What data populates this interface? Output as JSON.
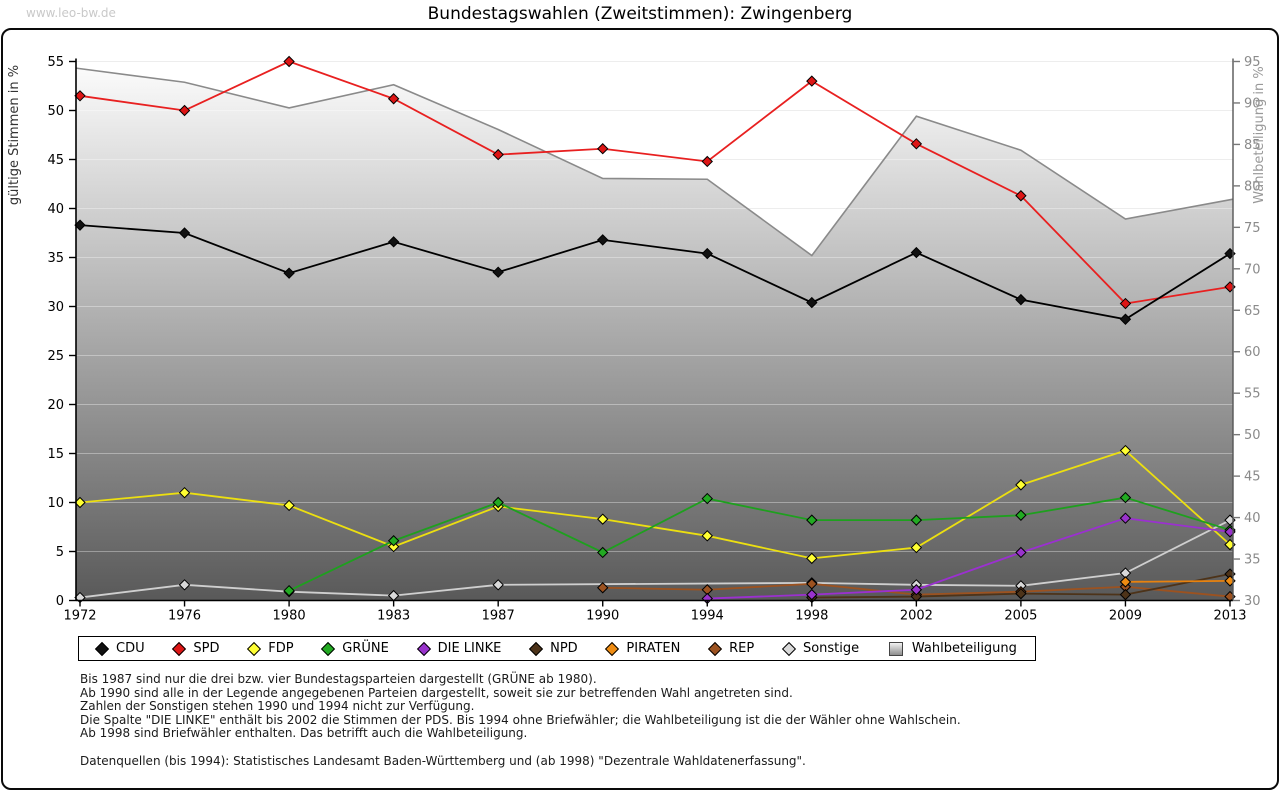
{
  "watermark": "www.leo-bw.de",
  "title": "Bundestagswahlen (Zweitstimmen): Zwingenberg",
  "footnotes": [
    "Bis 1987 sind nur die drei bzw. vier Bundestagsparteien dargestellt (GRÜNE ab 1980).",
    "Ab 1990 sind alle in der Legende angegebenen Parteien dargestellt, soweit sie zur betreffenden Wahl angetreten sind.",
    "Zahlen der Sonstigen stehen 1990 und 1994 nicht zur Verfügung.",
    "Die Spalte \"DIE LINKE\" enthält bis 2002 die Stimmen der PDS. Bis 1994 ohne Briefwähler; die Wahlbeteiligung ist die der Wähler ohne Wahlschein.",
    "Ab 1998 sind Briefwähler enthalten. Das betrifft auch die Wahlbeteiligung.",
    "Datenquellen (bis 1994): Statistisches Landesamt Baden-Württemberg und (ab 1998) \"Dezentrale Wahldatenerfassung\"."
  ],
  "chart_data": {
    "type": "line",
    "x": [
      1972,
      1976,
      1980,
      1983,
      1987,
      1990,
      1994,
      1998,
      2002,
      2005,
      2009,
      2013
    ],
    "left_axis": {
      "label": "gültige Stimmen in %",
      "min": 0,
      "max": 55,
      "step": 5
    },
    "right_axis": {
      "label": "Wahlbeteiligung in %",
      "min": 30,
      "max": 95,
      "step": 5
    },
    "grid": true,
    "legend_position": "bottom",
    "series": [
      {
        "name": "CDU",
        "axis": "left",
        "kind": "line",
        "color": "#000000",
        "marker_fill": "#111111",
        "values": [
          38.3,
          37.5,
          33.4,
          36.6,
          33.5,
          36.8,
          35.4,
          30.4,
          35.5,
          30.7,
          28.7,
          35.4
        ]
      },
      {
        "name": "SPD",
        "axis": "left",
        "kind": "line",
        "color": "#e82020",
        "marker_fill": "#dd1515",
        "values": [
          51.5,
          50.0,
          55.0,
          51.2,
          45.5,
          46.1,
          44.8,
          53.0,
          46.6,
          41.3,
          30.3,
          32.0
        ]
      },
      {
        "name": "FDP",
        "axis": "left",
        "kind": "line",
        "color": "#ecdf10",
        "marker_fill": "#ffff33",
        "values": [
          10.0,
          11.0,
          9.7,
          5.5,
          9.6,
          8.3,
          6.6,
          4.3,
          5.4,
          11.8,
          15.3,
          5.7
        ]
      },
      {
        "name": "GRÜNE",
        "axis": "left",
        "kind": "line",
        "color": "#1ea01e",
        "marker_fill": "#22aa22",
        "values": [
          null,
          null,
          1.0,
          6.1,
          10.0,
          4.9,
          10.4,
          8.2,
          8.2,
          8.7,
          10.5,
          7.2
        ]
      },
      {
        "name": "DIE LINKE",
        "axis": "left",
        "kind": "line",
        "color": "#9b30d0",
        "marker_fill": "#9933cc",
        "values": [
          null,
          null,
          null,
          null,
          null,
          null,
          0.2,
          0.6,
          1.1,
          4.9,
          8.4,
          7.0
        ]
      },
      {
        "name": "NPD",
        "axis": "left",
        "kind": "line",
        "color": "#4d3319",
        "marker_fill": "#4d3319",
        "values": [
          null,
          null,
          null,
          null,
          null,
          null,
          null,
          0.3,
          0.4,
          0.7,
          0.6,
          2.7
        ]
      },
      {
        "name": "PIRATEN",
        "axis": "left",
        "kind": "line",
        "color": "#e8820e",
        "marker_fill": "#ef8c12",
        "values": [
          null,
          null,
          null,
          null,
          null,
          null,
          null,
          null,
          null,
          null,
          1.9,
          2.0
        ]
      },
      {
        "name": "REP",
        "axis": "left",
        "kind": "line",
        "color": "#9c5220",
        "marker_fill": "#9c5220",
        "values": [
          null,
          null,
          null,
          null,
          null,
          1.3,
          1.1,
          1.7,
          0.6,
          0.9,
          1.4,
          0.4
        ]
      },
      {
        "name": "Sonstige",
        "axis": "left",
        "kind": "line",
        "color": "#cfcfcf",
        "marker_fill": "#d9d9d9",
        "values": [
          0.3,
          1.6,
          0.9,
          0.5,
          1.6,
          null,
          null,
          1.8,
          1.6,
          1.5,
          2.8,
          8.2
        ]
      },
      {
        "name": "Wahlbeteiligung",
        "axis": "right",
        "kind": "area",
        "color": "#8a8a8a",
        "marker_fill": null,
        "values": [
          94.2,
          92.5,
          89.4,
          92.2,
          86.8,
          80.9,
          80.8,
          71.6,
          88.4,
          84.3,
          76.0,
          78.4
        ]
      }
    ],
    "area_gradient": {
      "top": "#fbfbfb",
      "bottom": "#595959"
    },
    "draw_order": [
      "Wahlbeteiligung",
      "Sonstige",
      "REP",
      "NPD",
      "PIRATEN",
      "FDP",
      "GRÜNE",
      "DIE LINKE",
      "SPD",
      "CDU"
    ]
  }
}
